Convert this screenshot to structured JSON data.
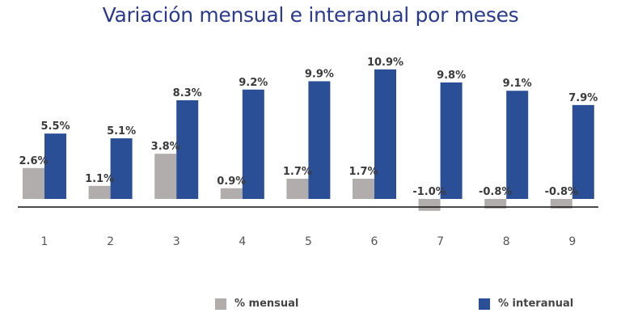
{
  "chart_data": {
    "type": "bar",
    "title": "Variación mensual e interanual por meses",
    "categories": [
      "1",
      "2",
      "3",
      "4",
      "5",
      "6",
      "7",
      "8",
      "9"
    ],
    "series": [
      {
        "name": "% mensual",
        "color": "#b1adad",
        "values": [
          2.6,
          1.1,
          3.8,
          0.9,
          1.7,
          1.7,
          -1.0,
          -0.8,
          -0.8
        ],
        "labels": [
          "2.6%",
          "1.1%",
          "3.8%",
          "0.9%",
          "1.7%",
          "1.7%",
          "-1.0%",
          "-0.8%",
          "-0.8%"
        ]
      },
      {
        "name": "% interanual",
        "color": "#2b4f96",
        "values": [
          5.5,
          5.1,
          8.3,
          9.2,
          9.9,
          10.9,
          9.8,
          9.1,
          7.9
        ],
        "labels": [
          "5.5%",
          "5.1%",
          "8.3%",
          "9.2%",
          "9.9%",
          "10.9%",
          "9.8%",
          "9.1%",
          "7.9%"
        ]
      }
    ],
    "grid": false,
    "legend_position": "bottom"
  }
}
